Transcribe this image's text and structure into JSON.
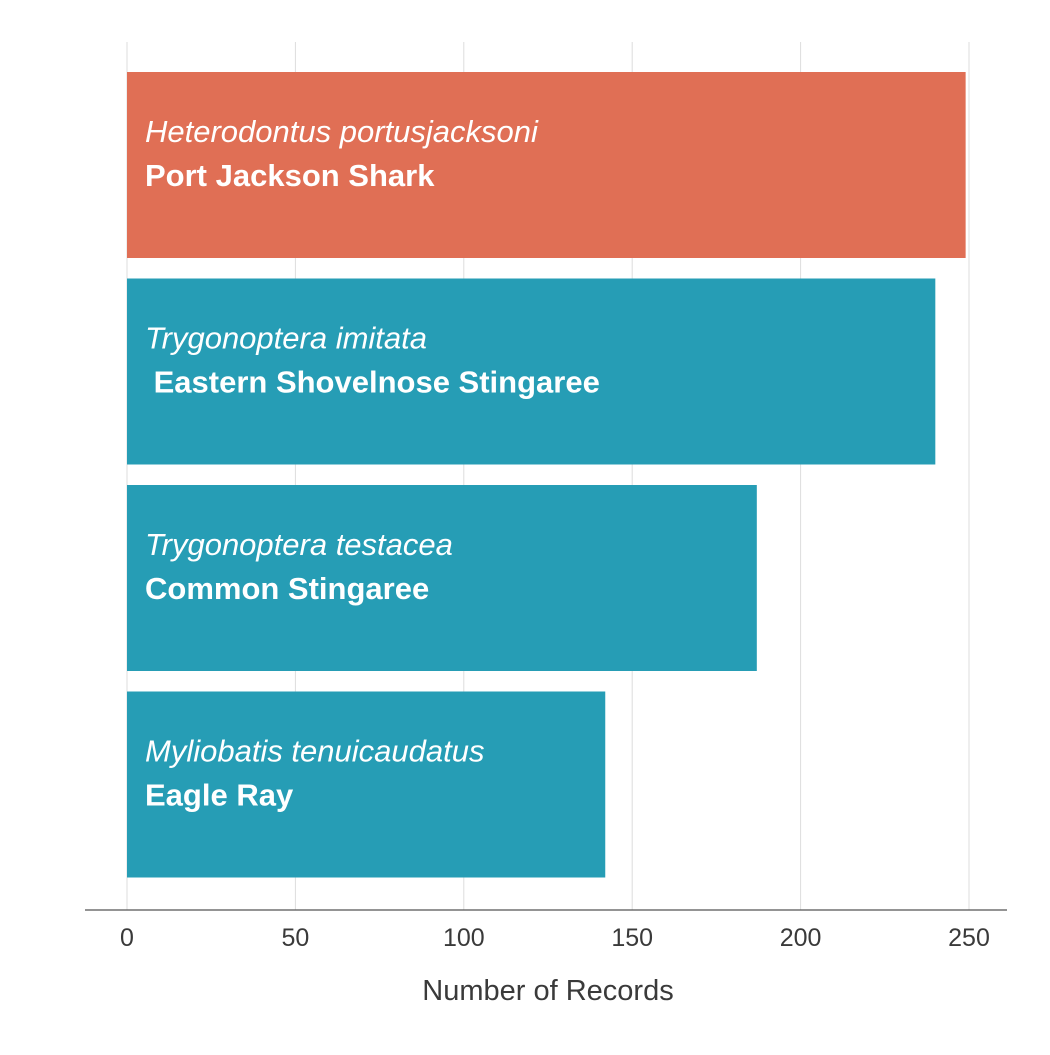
{
  "chart_data": {
    "type": "bar",
    "orientation": "horizontal",
    "xlabel": "Number of Records",
    "ylabel": "",
    "xlim": [
      0,
      250
    ],
    "xticks": [
      0,
      50,
      100,
      150,
      200,
      250
    ],
    "xtick_labels": [
      "0",
      "50",
      "100",
      "150",
      "200",
      "250"
    ],
    "grid": "vertical",
    "categories": [
      {
        "scientific_name": "Heterodontus portusjacksoni",
        "common_name": "Port Jackson Shark",
        "value": 249,
        "color": "#e06f55"
      },
      {
        "scientific_name": "Trygonoptera imitata",
        "common_name": " Eastern Shovelnose Stingaree",
        "value": 240,
        "color": "#269db5"
      },
      {
        "scientific_name": "Trygonoptera testacea",
        "common_name": "Common Stingaree",
        "value": 187,
        "color": "#269db5"
      },
      {
        "scientific_name": "Myliobatis tenuicaudatus",
        "common_name": "Eagle Ray",
        "value": 142,
        "color": "#269db5"
      }
    ],
    "colors": {
      "highlight": "#e06f55",
      "default": "#269db5",
      "grid": "#dddddd",
      "axis": "#555555",
      "text": "#3a3a3a"
    }
  }
}
